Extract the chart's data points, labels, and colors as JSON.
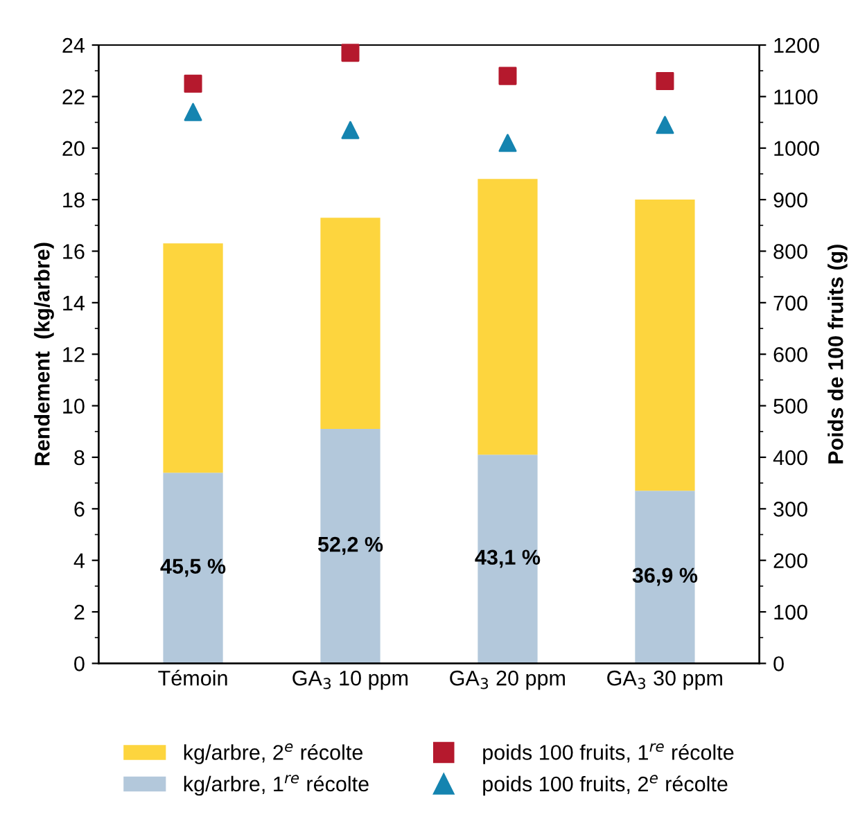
{
  "chart_data": {
    "type": "bar",
    "stacked": true,
    "categories": [
      "Témoin",
      "GA$_{3}$ 10 ppm",
      "GA$_{3}$ 20 ppm",
      "GA$_{3}$ 30 ppm"
    ],
    "ylabel": "Rendement  (kg/arbre)",
    "y2label": "Poids de 100 fruits (g)",
    "ylim": [
      0,
      24
    ],
    "yticks": [
      0,
      2,
      4,
      6,
      8,
      10,
      12,
      14,
      16,
      18,
      20,
      22,
      24
    ],
    "y2lim": [
      0,
      1200
    ],
    "y2ticks": [
      0,
      100,
      200,
      300,
      400,
      500,
      600,
      700,
      800,
      900,
      1000,
      1100,
      1200
    ],
    "grid": false,
    "legend": "bottom",
    "annotations": [
      "45,5 %",
      "52,2 %",
      "43,1 %",
      "36,9 %"
    ],
    "series": [
      {
        "name": "kg/arbre, 1$^{re}$ récolte",
        "color": "#b3c8db",
        "values": [
          7.4,
          9.1,
          8.1,
          6.7
        ]
      },
      {
        "name": "kg/arbre, 2$^{e}$ récolte",
        "color": "#fdd53e",
        "values": [
          8.9,
          8.2,
          10.7,
          11.3
        ]
      },
      {
        "name": "poids 100 fruits, 1$^{re}$ récolte",
        "type": "scatter",
        "axis": "y2",
        "marker": "square",
        "color": "#b5192d",
        "values": [
          1125,
          1185,
          1140,
          1130
        ]
      },
      {
        "name": "poids 100 fruits, 2$^{e}$ récolte",
        "type": "scatter",
        "axis": "y2",
        "marker": "triangle",
        "color": "#1584b0",
        "values": [
          1070,
          1035,
          1010,
          1045
        ]
      }
    ]
  }
}
